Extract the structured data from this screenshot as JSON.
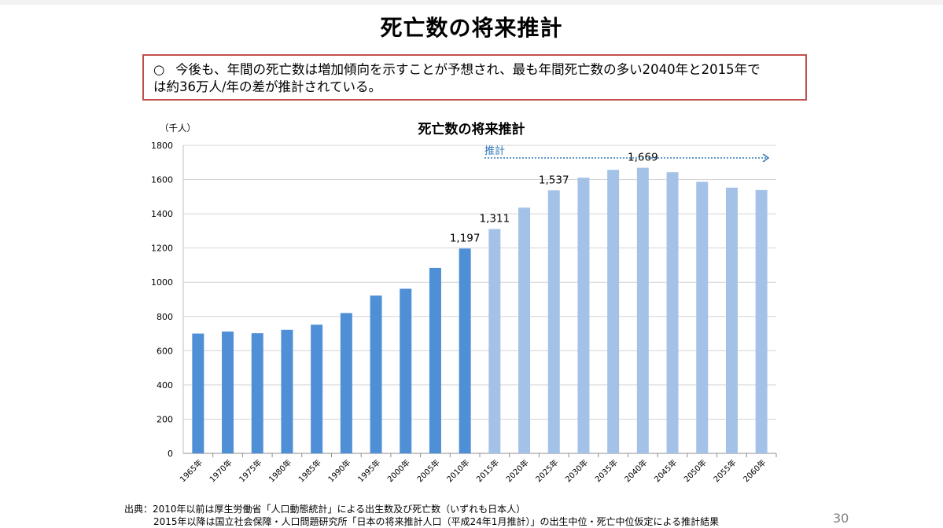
{
  "slide": {
    "title": "死亡数の将来推計",
    "summary_bullet": "○",
    "summary_line1": "今後も、年間の死亡数は増加傾向を示すことが予想され、最も年間死亡数の多い2040年と2015年で",
    "summary_line2": "は約36万人/年の差が推計されている。",
    "source_line1": "出典：2010年以前は厚生労働省「人口動態統計」による出生数及び死亡数（いずれも日本人）",
    "source_line2": "2015年以降は国立社会保障・人口問題研究所「日本の将来推計人口（平成24年1月推計）」の出生中位・死亡中位仮定による推計結果",
    "page_number": "30"
  },
  "chart_data": {
    "type": "bar",
    "title": "死亡数の将来推計",
    "ylabel": "（千人）",
    "xlabel": "",
    "ylim": [
      0,
      1800
    ],
    "yticks": [
      0,
      200,
      400,
      600,
      800,
      1000,
      1200,
      1400,
      1600,
      1800
    ],
    "grid": true,
    "categories": [
      "1965年",
      "1970年",
      "1975年",
      "1980年",
      "1985年",
      "1990年",
      "1995年",
      "2000年",
      "2005年",
      "2010年",
      "2015年",
      "2020年",
      "2025年",
      "2030年",
      "2035年",
      "2040年",
      "2045年",
      "2050年",
      "2055年",
      "2060年"
    ],
    "values": [
      700,
      712,
      702,
      722,
      752,
      820,
      922,
      962,
      1084,
      1197,
      1311,
      1436,
      1537,
      1611,
      1657,
      1669,
      1643,
      1587,
      1553,
      1539
    ],
    "data_labels": [
      {
        "category": "2010年",
        "text": "1,197"
      },
      {
        "category": "2015年",
        "text": "1,311"
      },
      {
        "category": "2025年",
        "text": "1,537"
      },
      {
        "category": "2040年",
        "text": "1,669"
      }
    ],
    "projection_start": "2015年",
    "annotation": "推計",
    "colors": {
      "actual": "#4f8fd6",
      "projected": "#a4c2e8",
      "annotation": "#2e75b6",
      "grid": "#d4d4d4"
    }
  }
}
